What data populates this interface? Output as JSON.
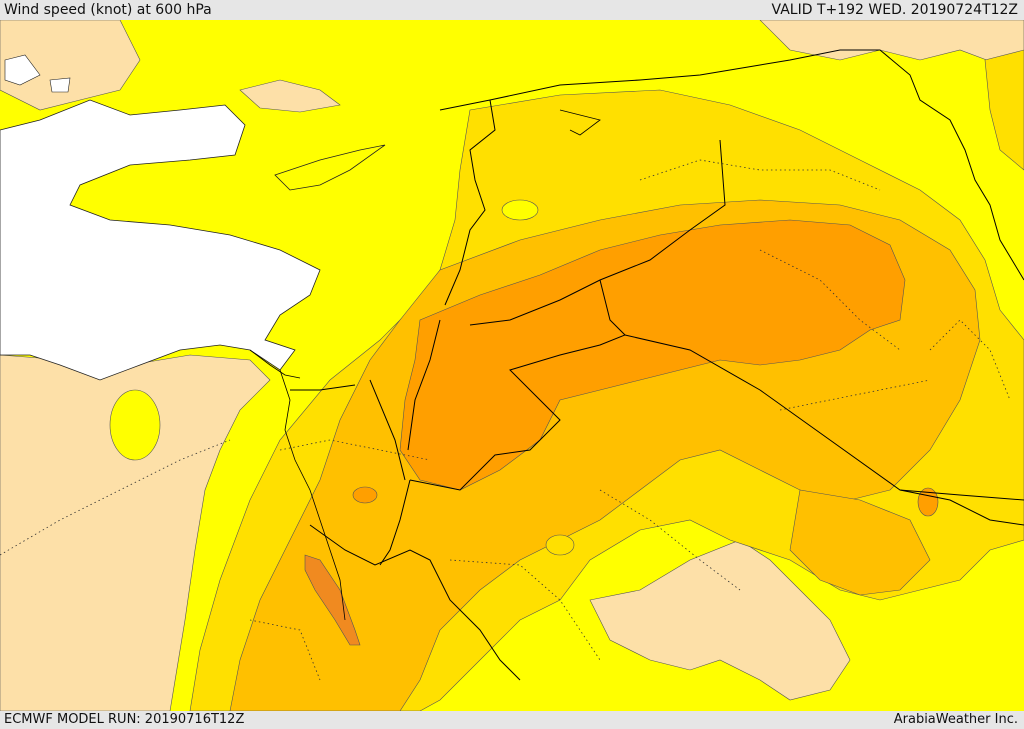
{
  "header": {
    "title": "Wind speed (knot) at 600 hPa",
    "valid": "VALID T+192 WED. 20190724T12Z"
  },
  "footer": {
    "model_run": "ECMWF MODEL RUN: 20190716T12Z",
    "credit": "ArabiaWeather Inc."
  },
  "colors": {
    "sea": "#ffffff",
    "desert_light": "#fde0a8",
    "yellow": "#ffff00",
    "yellow_orange": "#ffe000",
    "gold": "#ffc000",
    "orange": "#ff9f00",
    "dark_orange": "#f08a20",
    "border": "#000000"
  }
}
